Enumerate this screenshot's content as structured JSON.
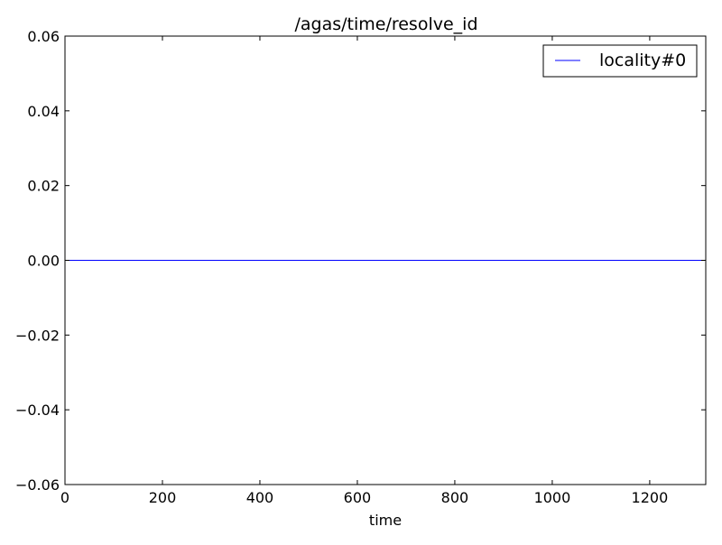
{
  "chart_data": {
    "type": "line",
    "title": "/agas/time/resolve_id",
    "xlabel": "time",
    "ylabel": "",
    "xlim": [
      0,
      1315
    ],
    "ylim": [
      -0.06,
      0.06
    ],
    "xticks": [
      0,
      200,
      400,
      600,
      800,
      1000,
      1200
    ],
    "xtick_labels": [
      "0",
      "200",
      "400",
      "600",
      "800",
      "1000",
      "1200"
    ],
    "yticks": [
      0.06,
      0.04,
      0.02,
      0.0,
      -0.02,
      -0.04,
      -0.06
    ],
    "ytick_labels": [
      "0.06",
      "0.04",
      "0.02",
      "0.00",
      "−0.02",
      "−0.04",
      "−0.06"
    ],
    "grid": false,
    "legend_position": "top-right",
    "series": [
      {
        "name": "locality#0",
        "color": "#0000ff",
        "x": [
          0,
          1315
        ],
        "y": [
          0.0,
          0.0
        ]
      }
    ]
  }
}
